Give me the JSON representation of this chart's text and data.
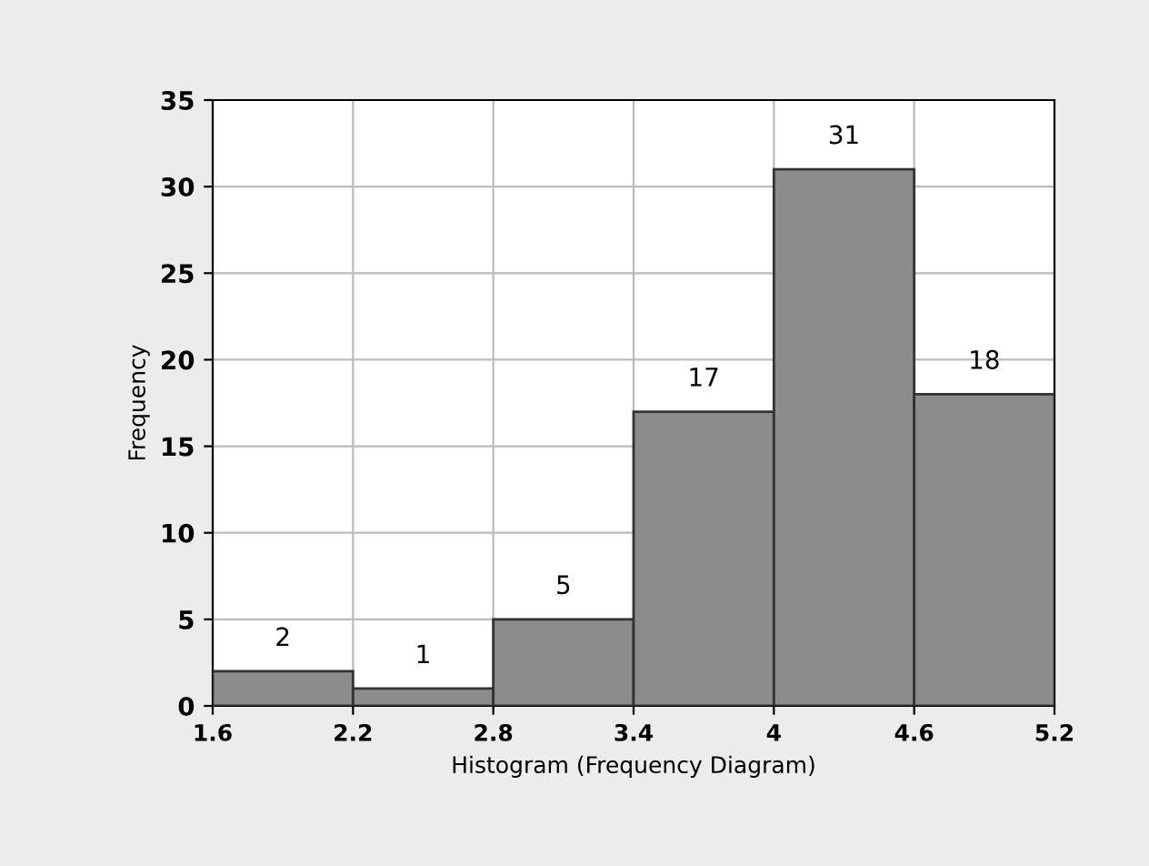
{
  "chart_data": {
    "type": "histogram",
    "xlabel": "Histogram (Frequency Diagram)",
    "ylabel": "Frequency",
    "bins": [
      1.6,
      2.2,
      2.8,
      3.4,
      4,
      4.6,
      5.2
    ],
    "values": [
      2,
      1,
      5,
      17,
      31,
      18
    ],
    "color": "#8c8c8c",
    "xlim": [
      1.6,
      5.2
    ],
    "xticks": [
      1.6,
      2.2,
      2.8,
      3.4,
      4,
      4.6,
      5.2
    ],
    "ylim": [
      0,
      35
    ],
    "yticks": [
      0,
      5,
      10,
      15,
      20,
      25,
      30,
      35
    ],
    "grid": true,
    "data_labels": true
  }
}
